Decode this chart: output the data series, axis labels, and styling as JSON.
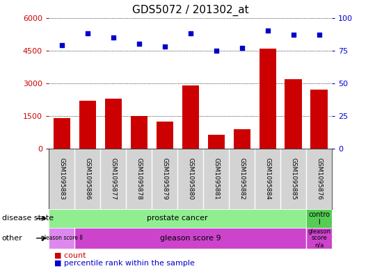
{
  "title": "GDS5072 / 201302_at",
  "samples": [
    "GSM1095883",
    "GSM1095886",
    "GSM1095877",
    "GSM1095878",
    "GSM1095879",
    "GSM1095880",
    "GSM1095881",
    "GSM1095882",
    "GSM1095884",
    "GSM1095885",
    "GSM1095876"
  ],
  "counts": [
    1400,
    2200,
    2300,
    1500,
    1250,
    2900,
    650,
    900,
    4600,
    3200,
    2700
  ],
  "percentile_ranks": [
    79,
    88,
    85,
    80,
    78,
    88,
    75,
    77,
    90,
    87,
    87
  ],
  "ylim_left": [
    0,
    6000
  ],
  "ylim_right": [
    0,
    100
  ],
  "yticks_left": [
    0,
    1500,
    3000,
    4500,
    6000
  ],
  "yticks_right": [
    0,
    25,
    50,
    75,
    100
  ],
  "bar_color": "#cc0000",
  "dot_color": "#0000cc",
  "xlabels_bg": "#d3d3d3",
  "ds_prostate_color": "#90ee90",
  "ds_control_color": "#55cc55",
  "other_gs8_color": "#dd88ee",
  "other_gs9_color": "#cc44cc",
  "other_gsna_color": "#cc44cc",
  "legend_count_color": "#cc0000",
  "legend_dot_color": "#0000cc",
  "left_tick_color": "#cc0000",
  "right_tick_color": "#0000cc"
}
